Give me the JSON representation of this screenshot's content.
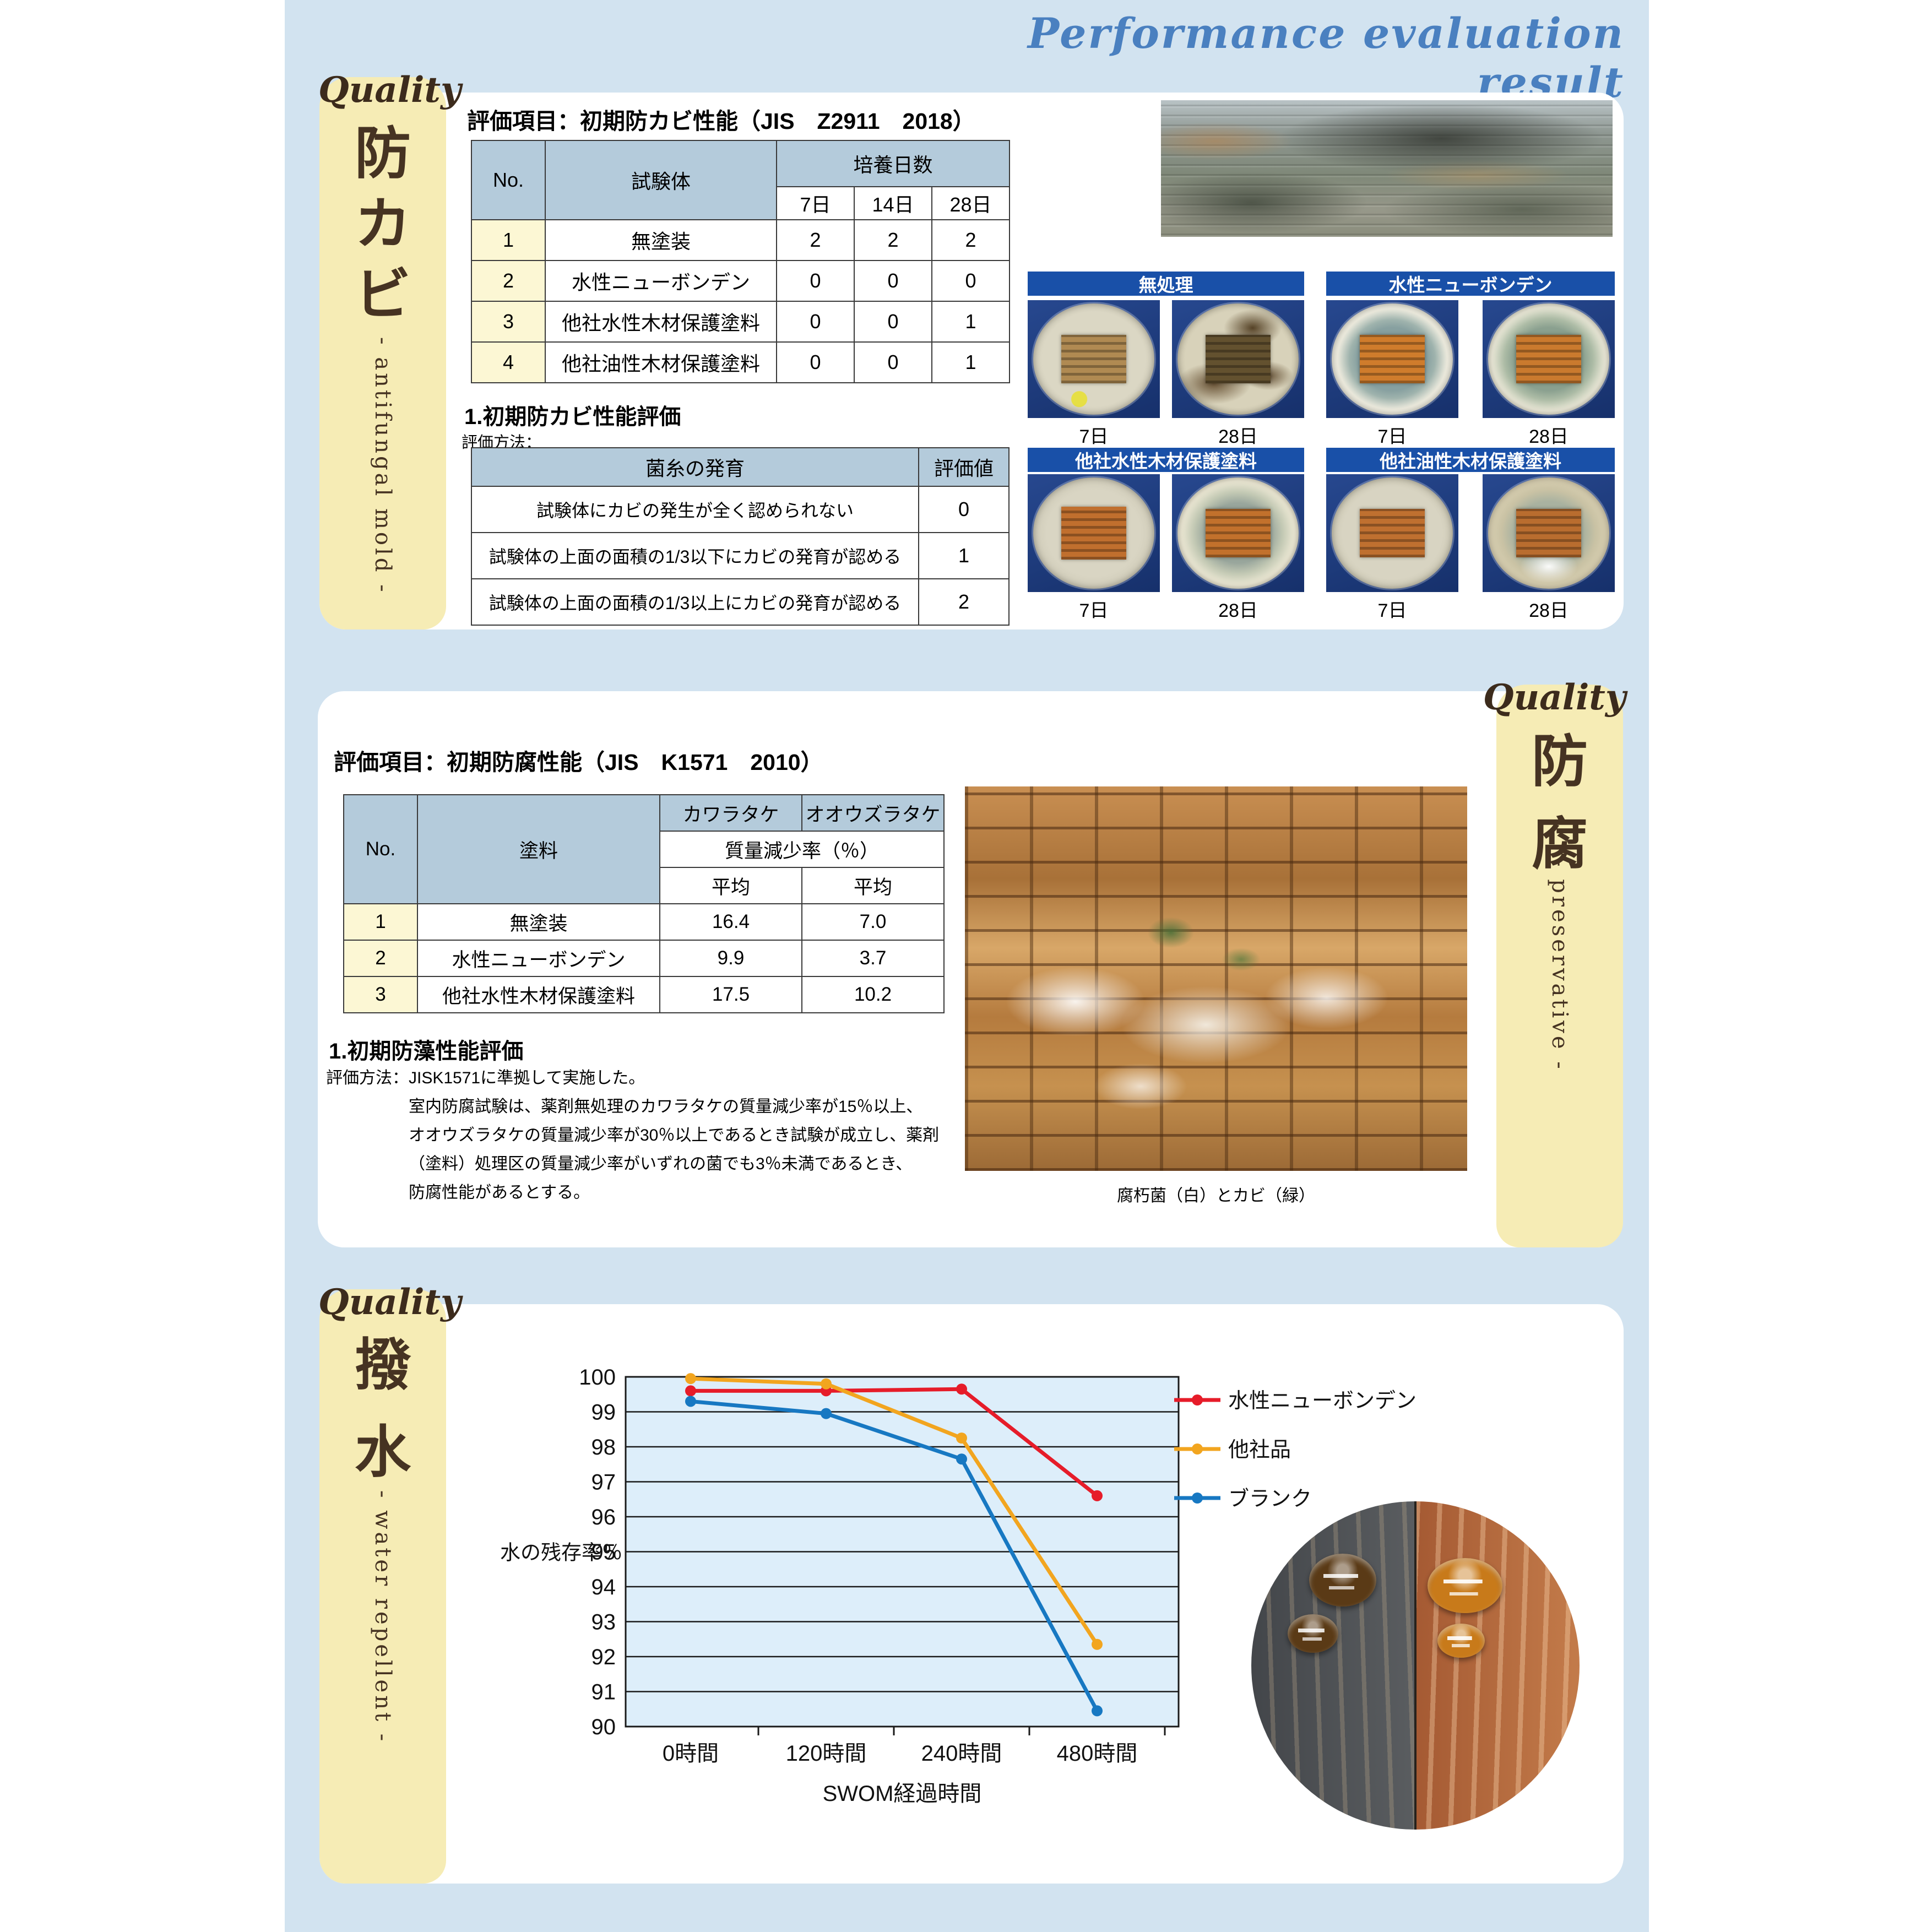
{
  "page": {
    "header_title": "Performance evaluation result"
  },
  "section_mold": {
    "quality_label": "Quality",
    "kanji": [
      "防",
      "カ",
      "ビ"
    ],
    "subtitle_en": "- antifungal mold -",
    "eval_title": "評価項目：初期防カビ性能（JIS　Z2911　2018）",
    "table_results": {
      "col_no": "No.",
      "col_specimen": "試験体",
      "col_group": "培養日数",
      "day_cols": [
        "7日",
        "14日",
        "28日"
      ],
      "rows": [
        {
          "no": "1",
          "name": "無塗装",
          "d7": "2",
          "d14": "2",
          "d28": "2"
        },
        {
          "no": "2",
          "name": "水性ニューボンデン",
          "d7": "0",
          "d14": "0",
          "d28": "0"
        },
        {
          "no": "3",
          "name": "他社水性木材保護塗料",
          "d7": "0",
          "d14": "0",
          "d28": "1"
        },
        {
          "no": "4",
          "name": "他社油性木材保護塗料",
          "d7": "0",
          "d14": "0",
          "d28": "1"
        }
      ]
    },
    "eval_heading": "1.初期防カビ性能評価",
    "method_label": "評価方法：",
    "table_criteria": {
      "col_growth": "菌糸の発育",
      "col_value": "評価値",
      "rows": [
        {
          "desc": "試験体にカビの発生が全く認められない",
          "value": "0"
        },
        {
          "desc": "試験体の上面の面積の1/3以下にカビの発育が認める",
          "value": "1"
        },
        {
          "desc": "試験体の上面の面積の1/3以上にカビの発育が認める",
          "value": "2"
        }
      ]
    },
    "petri_groups": [
      {
        "label": "無処理",
        "captions": [
          "7日",
          "28日"
        ]
      },
      {
        "label": "水性ニューボンデン",
        "captions": [
          "7日",
          "28日"
        ]
      },
      {
        "label": "他社水性木材保護塗料",
        "captions": [
          "7日",
          "28日"
        ]
      },
      {
        "label": "他社油性木材保護塗料",
        "captions": [
          "7日",
          "28日"
        ]
      }
    ]
  },
  "section_preservative": {
    "quality_label": "Quality",
    "kanji": [
      "防",
      "腐"
    ],
    "subtitle_en": "- preservative -",
    "eval_title": "評価項目：初期防腐性能（JIS　K1571　2010）",
    "table_results": {
      "col_no": "No.",
      "col_paint": "塗料",
      "col_fungus1": "カワラタケ",
      "col_fungus2": "オオウズラタケ",
      "col_massloss": "質量減少率（％）",
      "col_avg1": "平均",
      "col_avg2": "平均",
      "rows": [
        {
          "no": "1",
          "name": "無塗装",
          "v1": "16.4",
          "v2": "7.0"
        },
        {
          "no": "2",
          "name": "水性ニューボンデン",
          "v1": "9.9",
          "v2": "3.7"
        },
        {
          "no": "3",
          "name": "他社水性木材保護塗料",
          "v1": "17.5",
          "v2": "10.2"
        }
      ]
    },
    "eval_heading": "1.初期防藻性能評価",
    "method_lines": [
      "評価方法：JISK1571に準拠して実施した。",
      "室内防腐試験は、薬剤無処理のカワラタケの質量減少率が15％以上、",
      "オオウズラタケの質量減少率が30％以上であるとき試験が成立し、薬剤",
      "（塗料）処理区の質量減少率がいずれの菌でも3％未満であるとき、",
      "防腐性能があるとする。"
    ],
    "photo_caption": "腐朽菌（白）とカビ（緑）"
  },
  "section_water": {
    "quality_label": "Quality",
    "kanji": [
      "撥",
      "水"
    ],
    "subtitle_en": "- water repellent -"
  },
  "chart_data": {
    "type": "line",
    "title": "",
    "categories": [
      "0時間",
      "120時間",
      "240時間",
      "480時間"
    ],
    "series": [
      {
        "name": "水性ニューボンデン",
        "color": "#e61c29",
        "values": [
          99.6,
          99.6,
          99.65,
          96.6
        ]
      },
      {
        "name": "他社品",
        "color": "#f2a51f",
        "values": [
          99.95,
          99.8,
          98.25,
          92.35
        ]
      },
      {
        "name": "ブランク",
        "color": "#1778c2",
        "values": [
          99.3,
          98.95,
          97.65,
          90.45
        ]
      }
    ],
    "xlabel": "SWOM経過時間",
    "ylabel": "水の残存率％",
    "ylim": [
      90,
      100
    ],
    "ytick_step": 1,
    "grid": true,
    "legend_position": "right"
  }
}
